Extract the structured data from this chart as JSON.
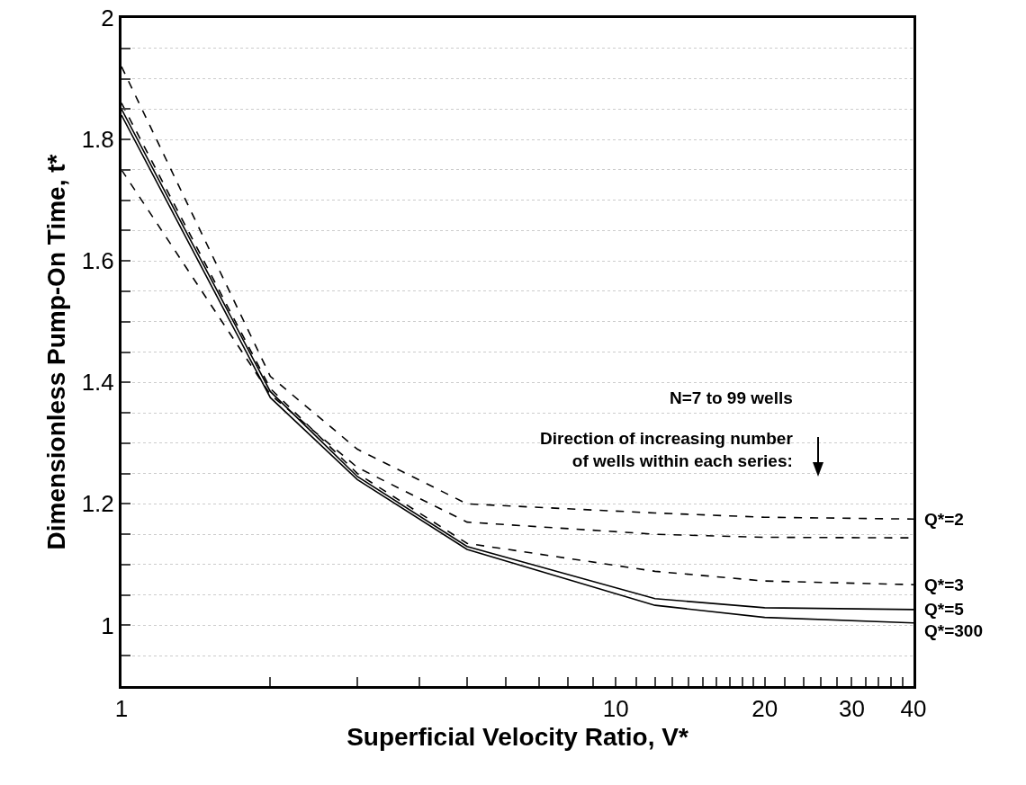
{
  "chart_data": {
    "type": "line",
    "xlabel": "Superficial Velocity Ratio, V*",
    "ylabel": "Dimensionless Pump-On Time, t*",
    "log": "x",
    "grid": "y",
    "legend": false,
    "marker": "none",
    "xlim": [
      1,
      40
    ],
    "xticks": [
      1,
      {
        "value": 2,
        "label": null
      },
      {
        "value": 3,
        "label": null
      },
      {
        "value": 4,
        "label": null
      },
      {
        "value": 5,
        "label": null
      },
      {
        "value": 6,
        "label": null
      },
      {
        "value": 7,
        "label": null
      },
      {
        "value": 8,
        "label": null
      },
      {
        "value": 9,
        "label": null
      },
      10,
      {
        "value": 11,
        "label": null
      },
      {
        "value": 12,
        "label": null
      },
      {
        "value": 13,
        "label": null
      },
      {
        "value": 14,
        "label": null
      },
      {
        "value": 15,
        "label": null
      },
      {
        "value": 16,
        "label": null
      },
      {
        "value": 17,
        "label": null
      },
      {
        "value": 18,
        "label": null
      },
      {
        "value": 19,
        "label": null
      },
      20,
      {
        "value": 22,
        "label": null
      },
      {
        "value": 24,
        "label": null
      },
      {
        "value": 26,
        "label": null
      },
      {
        "value": 28,
        "label": null
      },
      30,
      {
        "value": 32,
        "label": null
      },
      {
        "value": 34,
        "label": null
      },
      {
        "value": 36,
        "label": null
      },
      {
        "value": 38,
        "label": null
      },
      40
    ],
    "ylim": [
      0.9,
      2
    ],
    "yticks": [
      {
        "value": 0.95,
        "label": null
      },
      1,
      {
        "value": 1.05,
        "label": null
      },
      {
        "value": 1.1,
        "label": null
      },
      {
        "value": 1.15,
        "label": null
      },
      1.2,
      {
        "value": 1.25,
        "label": null
      },
      {
        "value": 1.3,
        "label": null
      },
      {
        "value": 1.35,
        "label": null
      },
      1.4,
      {
        "value": 1.45,
        "label": null
      },
      {
        "value": 1.5,
        "label": null
      },
      {
        "value": 1.55,
        "label": null
      },
      1.6,
      {
        "value": 1.65,
        "label": null
      },
      {
        "value": 1.7,
        "label": null
      },
      {
        "value": 1.75,
        "label": null
      },
      1.8,
      {
        "value": 1.85,
        "label": null
      },
      {
        "value": 1.9,
        "label": null
      },
      {
        "value": 1.95,
        "label": null
      },
      2
    ],
    "x": [
      1,
      2,
      3,
      5,
      12,
      20,
      40
    ],
    "series": [
      {
        "name": "Q*=2",
        "color": "#000000",
        "line_style": "dashed",
        "values": [
          1.92,
          1.41,
          1.29,
          1.2,
          1.185,
          1.178,
          1.175
        ]
      },
      {
        "color": "#000000",
        "line_style": "dashed",
        "values": [
          1.75,
          1.38,
          1.26,
          1.17,
          1.15,
          1.145,
          1.144
        ]
      },
      {
        "name": "Q*=3",
        "color": "#000000",
        "line_style": "dashed",
        "values": [
          1.86,
          1.39,
          1.25,
          1.135,
          1.089,
          1.073,
          1.067
        ]
      },
      {
        "name": "Q*=5",
        "color": "#000000",
        "line_style": "solid",
        "values": [
          1.85,
          1.385,
          1.245,
          1.13,
          1.044,
          1.029,
          1.026
        ]
      },
      {
        "name": "Q*=300",
        "color": "#000000",
        "line_style": "solid",
        "values": [
          1.84,
          1.375,
          1.24,
          1.125,
          1.033,
          1.013,
          1.004
        ]
      }
    ],
    "annotations": [
      "N=7 to 99 wells",
      "Direction of increasing number\nof wells within each series:"
    ]
  }
}
